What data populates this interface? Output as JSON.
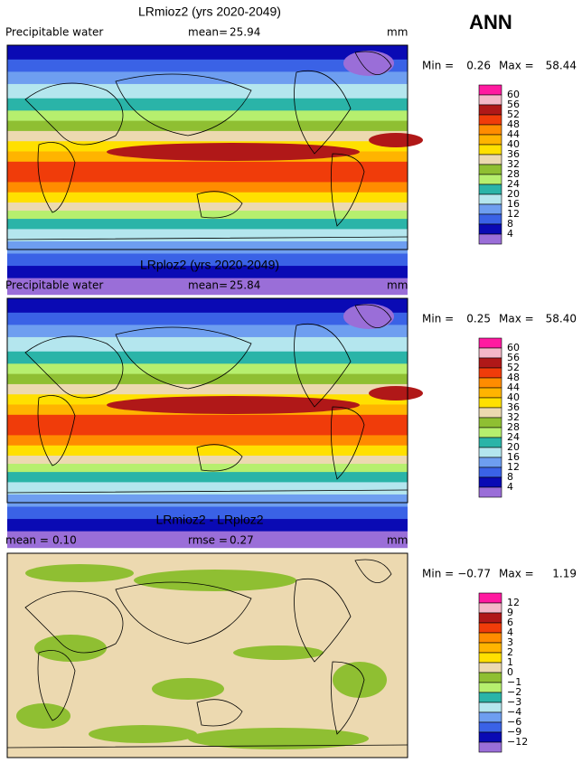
{
  "title": "ANN",
  "panels": [
    {
      "title": "LRmioz2 (yrs 2020-2049)",
      "left_label": "Precipitable water",
      "stat_label": "mean=",
      "stat": "25.94",
      "units": "mm",
      "min_label": "Min =",
      "min": "0.26",
      "max_label": "Max =",
      "max": "58.44",
      "colorbar": {
        "labels": [
          "60",
          "56",
          "52",
          "48",
          "44",
          "40",
          "36",
          "32",
          "28",
          "24",
          "20",
          "16",
          "12",
          "8",
          "4"
        ],
        "colors": [
          "#ff1aa0",
          "#f4b8c8",
          "#b01818",
          "#f03c0a",
          "#ff8c00",
          "#ffb400",
          "#ffe000",
          "#ecd9b0",
          "#8fbf32",
          "#b6ef6e",
          "#2ab4a8",
          "#b4e6ee",
          "#6e9ef0",
          "#3a62e6",
          "#0a0ab4",
          "#9a6ed8"
        ]
      }
    },
    {
      "title": "LRploz2 (yrs 2020-2049)",
      "left_label": "Precipitable water",
      "stat_label": "mean=",
      "stat": "25.84",
      "units": "mm",
      "min_label": "Min =",
      "min": "0.25",
      "max_label": "Max =",
      "max": "58.40",
      "colorbar": {
        "labels": [
          "60",
          "56",
          "52",
          "48",
          "44",
          "40",
          "36",
          "32",
          "28",
          "24",
          "20",
          "16",
          "12",
          "8",
          "4"
        ],
        "colors": [
          "#ff1aa0",
          "#f4b8c8",
          "#b01818",
          "#f03c0a",
          "#ff8c00",
          "#ffb400",
          "#ffe000",
          "#ecd9b0",
          "#8fbf32",
          "#b6ef6e",
          "#2ab4a8",
          "#b4e6ee",
          "#6e9ef0",
          "#3a62e6",
          "#0a0ab4",
          "#9a6ed8"
        ]
      }
    },
    {
      "title": "LRmioz2 - LRploz2",
      "left_label": "mean =",
      "left_value": "0.10",
      "stat_label": "rmse =",
      "stat": "0.27",
      "units": "mm",
      "min_label": "Min =",
      "min": "−0.77",
      "max_label": "Max =",
      "max": "1.19",
      "colorbar": {
        "labels": [
          "12",
          "9",
          "6",
          "4",
          "3",
          "2",
          "1",
          "0",
          "−1",
          "−2",
          "−3",
          "−4",
          "−6",
          "−9",
          "−12"
        ],
        "colors": [
          "#ff1aa0",
          "#f4b8c8",
          "#b01818",
          "#f03c0a",
          "#ff8c00",
          "#ffb400",
          "#ffe000",
          "#ecd9b0",
          "#8fbf32",
          "#b6ef6e",
          "#2ab4a8",
          "#b4e6ee",
          "#6e9ef0",
          "#3a62e6",
          "#0a0ab4",
          "#9a6ed8"
        ]
      }
    }
  ]
}
